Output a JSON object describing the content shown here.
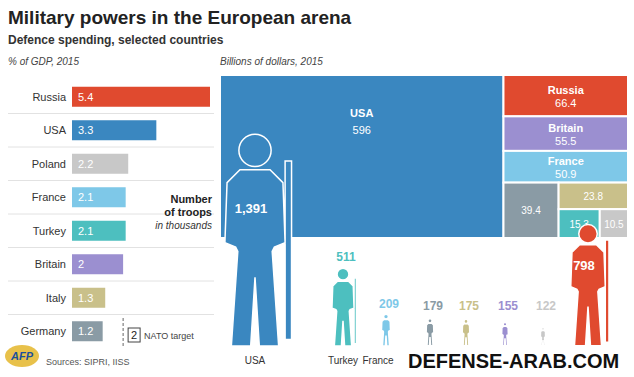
{
  "title": "Military powers in the European arena",
  "subtitle": "Defence spending, selected countries",
  "sources": "Sources: SIPRI, IISS",
  "watermark": "DEFENSE-ARAB.COM",
  "logo": "AFP",
  "chart_data": [
    {
      "type": "bar",
      "title": "% of GDP, 2015",
      "orientation": "horizontal",
      "categories": [
        "Russia",
        "USA",
        "Poland",
        "France",
        "Turkey",
        "Britain",
        "Italy",
        "Germany"
      ],
      "values": [
        5.4,
        3.3,
        2.2,
        2.1,
        2.1,
        2,
        1.3,
        1.2
      ],
      "colors": [
        "#e04a2f",
        "#3a87c0",
        "#c8c8c8",
        "#7ec8e8",
        "#4dbfbf",
        "#9b8fd0",
        "#c9c08a",
        "#8a9ba5"
      ],
      "xlim": [
        0,
        5.4
      ],
      "tick_labels": "y",
      "data_labels": true,
      "grid": true,
      "reference_line": {
        "value": 2,
        "label": "NATO target"
      }
    },
    {
      "type": "treemap",
      "title": "Billions of dollars, 2015",
      "categories": [
        "USA",
        "Russia",
        "Britain",
        "France",
        null,
        null,
        null,
        null
      ],
      "values": [
        596,
        66.4,
        55.5,
        50.9,
        39.4,
        23.8,
        15.3,
        10.5
      ],
      "colors": [
        "#3a87c0",
        "#e04a2f",
        "#9b8fd0",
        "#7ec8e8",
        "#8a9ba5",
        "#c9c08a",
        "#4dbfbf",
        "#c8c8c8"
      ],
      "data_labels": true
    },
    {
      "type": "pictogram",
      "title": [
        "Number",
        "of troops"
      ],
      "subtitle": "in thousands",
      "categories": [
        "USA",
        "Turkey",
        "France",
        null,
        null,
        null,
        null,
        null
      ],
      "values": [
        1391,
        511,
        209,
        179,
        175,
        155,
        122,
        798
      ],
      "value_labels": [
        "1,391",
        "511",
        "209",
        "179",
        "175",
        "155",
        "122",
        "798"
      ],
      "colors": [
        "#3a87c0",
        "#4dbfbf",
        "#7ec8e8",
        "#8a9ba5",
        "#c9c08a",
        "#9b8fd0",
        "#c8c8c8",
        "#e04a2f"
      ],
      "ylim": [
        0,
        1391
      ],
      "tick_labels": "x",
      "data_labels": true
    }
  ]
}
